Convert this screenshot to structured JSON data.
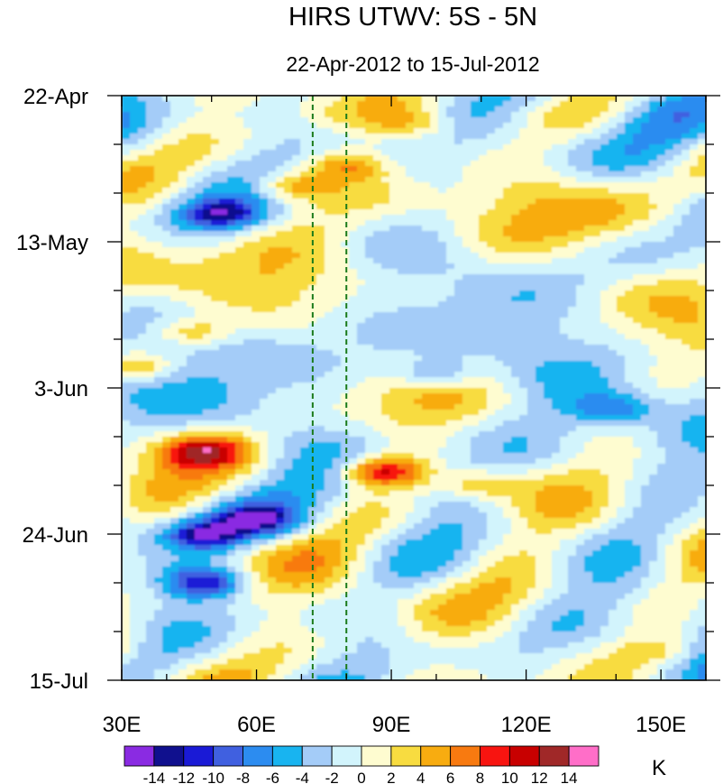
{
  "chart_data": {
    "type": "heatmap",
    "title": "HIRS UTWV: 5S - 5N",
    "subtitle": "22-Apr-2012 to 15-Jul-2012",
    "x_axis": {
      "range": [
        30,
        160
      ],
      "ticks": [
        {
          "value": 30,
          "label": "30E"
        },
        {
          "value": 60,
          "label": "60E"
        },
        {
          "value": 90,
          "label": "90E"
        },
        {
          "value": 120,
          "label": "120E"
        },
        {
          "value": 150,
          "label": "150E"
        }
      ],
      "minor_step": 10
    },
    "y_axis": {
      "range_days": [
        0,
        84
      ],
      "reversed": true,
      "ticks": [
        {
          "value": 0,
          "label": "22-Apr"
        },
        {
          "value": 21,
          "label": "13-May"
        },
        {
          "value": 42,
          "label": "3-Jun"
        },
        {
          "value": 63,
          "label": "24-Jun"
        },
        {
          "value": 84,
          "label": "15-Jul"
        }
      ],
      "minor_step": 7
    },
    "reference_lines": [
      {
        "longitude": 72.5,
        "style": "dashed",
        "color": "#1a7a1a"
      },
      {
        "longitude": 80,
        "style": "dashed",
        "color": "#1a7a1a"
      }
    ],
    "levels": [
      -14,
      -12,
      -10,
      -8,
      -6,
      -4,
      -2,
      0,
      2,
      4,
      6,
      8,
      10,
      12,
      14
    ],
    "level_labels": [
      "-14",
      "-12",
      "-10",
      "-8",
      "-6",
      "-4",
      "-2",
      "0",
      "2",
      "4",
      "6",
      "8",
      "10",
      "12",
      "14"
    ],
    "colors": [
      "#8a2be2",
      "#10108e",
      "#1a1ad6",
      "#4060e0",
      "#2c8cf0",
      "#18b4f0",
      "#a4ccf8",
      "#d2f4fc",
      "#fefcd0",
      "#f8dc40",
      "#f8ac10",
      "#f87a10",
      "#f81410",
      "#c80000",
      "#a02828",
      "#ff6ec8"
    ],
    "units": "K",
    "features": [
      {
        "lon": 68,
        "day": 13,
        "anomaly": 7
      },
      {
        "lon": 80,
        "day": 10,
        "anomaly": 7
      },
      {
        "lon": 52,
        "day": 17,
        "anomaly": -10
      },
      {
        "lon": 46,
        "day": 34,
        "anomaly": 6
      },
      {
        "lon": 33,
        "day": 39,
        "anomaly": 7
      },
      {
        "lon": 48,
        "day": 51,
        "anomaly": 9
      },
      {
        "lon": 88,
        "day": 54,
        "anomaly": 12
      },
      {
        "lon": 110,
        "day": 56,
        "anomaly": 5
      },
      {
        "lon": 48,
        "day": 63,
        "anomaly": -11
      },
      {
        "lon": 60,
        "day": 61,
        "anomaly": -10
      },
      {
        "lon": 48,
        "day": 70,
        "anomaly": -11
      },
      {
        "lon": 95,
        "day": 4,
        "anomaly": 4
      },
      {
        "lon": 150,
        "day": 80,
        "anomaly": 4
      },
      {
        "lon": 100,
        "day": 40,
        "anomaly": -6
      },
      {
        "lon": 140,
        "day": 45,
        "anomaly": -6
      }
    ]
  }
}
